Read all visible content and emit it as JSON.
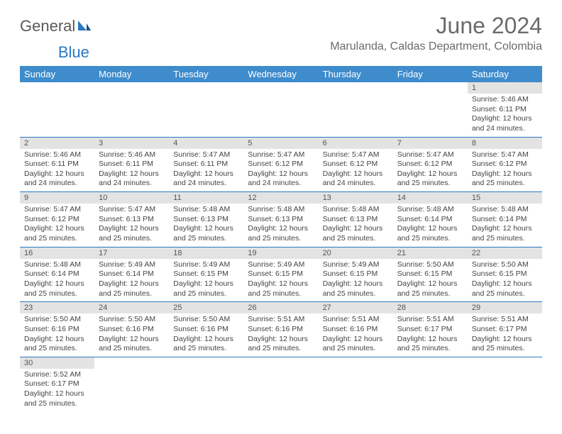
{
  "logo": {
    "text1": "General",
    "text2": "Blue"
  },
  "title": "June 2024",
  "location": "Marulanda, Caldas Department, Colombia",
  "day_headers": [
    "Sunday",
    "Monday",
    "Tuesday",
    "Wednesday",
    "Thursday",
    "Friday",
    "Saturday"
  ],
  "colors": {
    "header_bg": "#3e8ccc",
    "row_divider": "#2b79c2",
    "daynum_bg": "#e3e3e3",
    "text": "#444"
  },
  "weeks": [
    [
      null,
      null,
      null,
      null,
      null,
      null,
      {
        "n": "1",
        "sunrise": "5:46 AM",
        "sunset": "6:11 PM",
        "daylight": "12 hours and 24 minutes."
      }
    ],
    [
      {
        "n": "2",
        "sunrise": "5:46 AM",
        "sunset": "6:11 PM",
        "daylight": "12 hours and 24 minutes."
      },
      {
        "n": "3",
        "sunrise": "5:46 AM",
        "sunset": "6:11 PM",
        "daylight": "12 hours and 24 minutes."
      },
      {
        "n": "4",
        "sunrise": "5:47 AM",
        "sunset": "6:11 PM",
        "daylight": "12 hours and 24 minutes."
      },
      {
        "n": "5",
        "sunrise": "5:47 AM",
        "sunset": "6:12 PM",
        "daylight": "12 hours and 24 minutes."
      },
      {
        "n": "6",
        "sunrise": "5:47 AM",
        "sunset": "6:12 PM",
        "daylight": "12 hours and 24 minutes."
      },
      {
        "n": "7",
        "sunrise": "5:47 AM",
        "sunset": "6:12 PM",
        "daylight": "12 hours and 25 minutes."
      },
      {
        "n": "8",
        "sunrise": "5:47 AM",
        "sunset": "6:12 PM",
        "daylight": "12 hours and 25 minutes."
      }
    ],
    [
      {
        "n": "9",
        "sunrise": "5:47 AM",
        "sunset": "6:12 PM",
        "daylight": "12 hours and 25 minutes."
      },
      {
        "n": "10",
        "sunrise": "5:47 AM",
        "sunset": "6:13 PM",
        "daylight": "12 hours and 25 minutes."
      },
      {
        "n": "11",
        "sunrise": "5:48 AM",
        "sunset": "6:13 PM",
        "daylight": "12 hours and 25 minutes."
      },
      {
        "n": "12",
        "sunrise": "5:48 AM",
        "sunset": "6:13 PM",
        "daylight": "12 hours and 25 minutes."
      },
      {
        "n": "13",
        "sunrise": "5:48 AM",
        "sunset": "6:13 PM",
        "daylight": "12 hours and 25 minutes."
      },
      {
        "n": "14",
        "sunrise": "5:48 AM",
        "sunset": "6:14 PM",
        "daylight": "12 hours and 25 minutes."
      },
      {
        "n": "15",
        "sunrise": "5:48 AM",
        "sunset": "6:14 PM",
        "daylight": "12 hours and 25 minutes."
      }
    ],
    [
      {
        "n": "16",
        "sunrise": "5:48 AM",
        "sunset": "6:14 PM",
        "daylight": "12 hours and 25 minutes."
      },
      {
        "n": "17",
        "sunrise": "5:49 AM",
        "sunset": "6:14 PM",
        "daylight": "12 hours and 25 minutes."
      },
      {
        "n": "18",
        "sunrise": "5:49 AM",
        "sunset": "6:15 PM",
        "daylight": "12 hours and 25 minutes."
      },
      {
        "n": "19",
        "sunrise": "5:49 AM",
        "sunset": "6:15 PM",
        "daylight": "12 hours and 25 minutes."
      },
      {
        "n": "20",
        "sunrise": "5:49 AM",
        "sunset": "6:15 PM",
        "daylight": "12 hours and 25 minutes."
      },
      {
        "n": "21",
        "sunrise": "5:50 AM",
        "sunset": "6:15 PM",
        "daylight": "12 hours and 25 minutes."
      },
      {
        "n": "22",
        "sunrise": "5:50 AM",
        "sunset": "6:15 PM",
        "daylight": "12 hours and 25 minutes."
      }
    ],
    [
      {
        "n": "23",
        "sunrise": "5:50 AM",
        "sunset": "6:16 PM",
        "daylight": "12 hours and 25 minutes."
      },
      {
        "n": "24",
        "sunrise": "5:50 AM",
        "sunset": "6:16 PM",
        "daylight": "12 hours and 25 minutes."
      },
      {
        "n": "25",
        "sunrise": "5:50 AM",
        "sunset": "6:16 PM",
        "daylight": "12 hours and 25 minutes."
      },
      {
        "n": "26",
        "sunrise": "5:51 AM",
        "sunset": "6:16 PM",
        "daylight": "12 hours and 25 minutes."
      },
      {
        "n": "27",
        "sunrise": "5:51 AM",
        "sunset": "6:16 PM",
        "daylight": "12 hours and 25 minutes."
      },
      {
        "n": "28",
        "sunrise": "5:51 AM",
        "sunset": "6:17 PM",
        "daylight": "12 hours and 25 minutes."
      },
      {
        "n": "29",
        "sunrise": "5:51 AM",
        "sunset": "6:17 PM",
        "daylight": "12 hours and 25 minutes."
      }
    ],
    [
      {
        "n": "30",
        "sunrise": "5:52 AM",
        "sunset": "6:17 PM",
        "daylight": "12 hours and 25 minutes."
      },
      null,
      null,
      null,
      null,
      null,
      null
    ]
  ],
  "labels": {
    "sunrise": "Sunrise:",
    "sunset": "Sunset:",
    "daylight": "Daylight:"
  }
}
